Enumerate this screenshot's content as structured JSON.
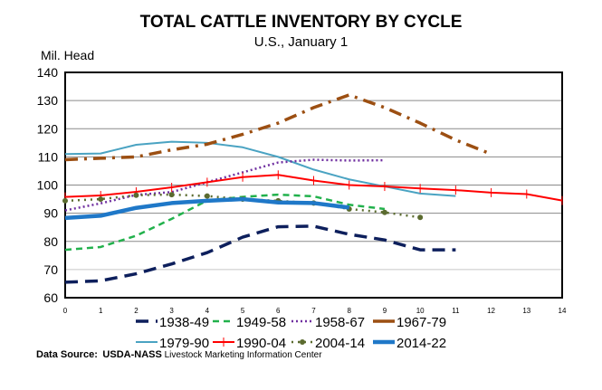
{
  "chart_data": {
    "type": "line",
    "title": "TOTAL CATTLE INVENTORY BY CYCLE",
    "subtitle": "U.S., January 1",
    "ylabel": "Mil. Head",
    "xlabel": "",
    "xlim": [
      0,
      14
    ],
    "ylim": [
      60,
      140
    ],
    "xticks": [
      0,
      1,
      2,
      3,
      4,
      5,
      6,
      7,
      8,
      9,
      10,
      11,
      12,
      13,
      14
    ],
    "yticks": [
      60,
      70,
      80,
      90,
      100,
      110,
      120,
      130,
      140
    ],
    "grid": true,
    "legend_position": "bottom",
    "series": [
      {
        "name": "1938-49",
        "color": "#0d1f5c",
        "values": [
          65.5,
          66,
          68.5,
          72,
          76,
          81.5,
          85.2,
          85.4,
          82.5,
          80.5,
          77,
          77
        ]
      },
      {
        "name": "1949-58",
        "color": "#22b14c",
        "values": [
          77,
          78,
          82,
          88,
          94.5,
          95.8,
          96.6,
          96,
          93,
          91.5
        ]
      },
      {
        "name": "1958-67",
        "color": "#7030a0",
        "values": [
          91,
          93.5,
          96.5,
          97.5,
          101,
          104.5,
          108,
          109,
          108.7,
          108.8
        ]
      },
      {
        "name": "1967-79",
        "color": "#9c4f12",
        "values": [
          109,
          109.5,
          110,
          112.5,
          114.5,
          118,
          122,
          127.5,
          132,
          127.5,
          122,
          116,
          111
        ]
      },
      {
        "name": "1979-90",
        "color": "#4aa3c2",
        "values": [
          111,
          111.2,
          114.3,
          115.4,
          115,
          113.4,
          110,
          105.5,
          102,
          99.5,
          97,
          96.1
        ]
      },
      {
        "name": "1990-04",
        "color": "#ff0000",
        "values": [
          95.8,
          96.3,
          97.6,
          99.2,
          101,
          102.8,
          103.6,
          101.6,
          100,
          99.5,
          98.8,
          98.2,
          97.3,
          96.8,
          94.5
        ]
      },
      {
        "name": "2004-14",
        "color": "#5b6b2f",
        "values": [
          94.4,
          95.0,
          96.4,
          96.6,
          96.1,
          95.0,
          94.4,
          93.6,
          91.5,
          90.3,
          88.5
        ]
      },
      {
        "name": "2014-22",
        "color": "#1f78c8",
        "values": [
          88.3,
          89.1,
          91.9,
          93.6,
          94.4,
          95.0,
          93.8,
          93.6,
          92.0
        ]
      }
    ]
  },
  "source": {
    "label": "Data Source:",
    "bold_text": "USDA-NASS",
    "text": "Livestock Marketing Information Center"
  }
}
